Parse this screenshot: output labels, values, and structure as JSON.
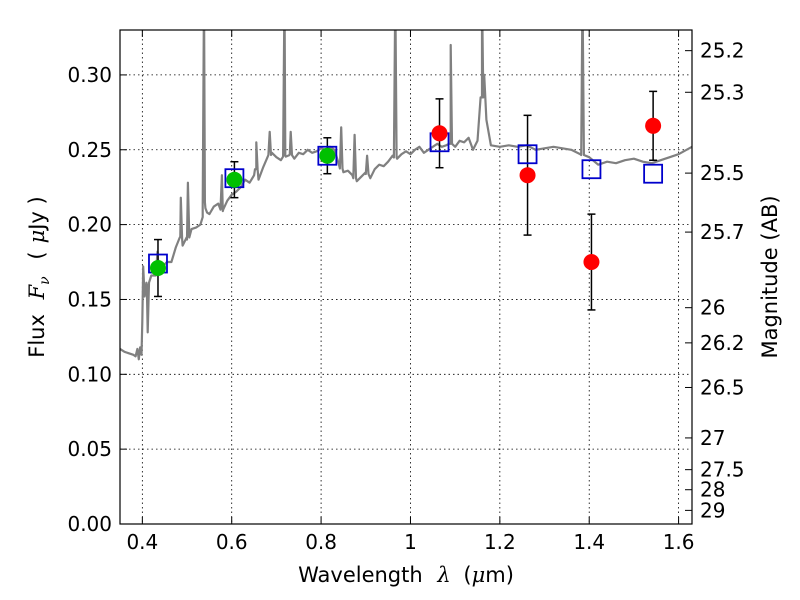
{
  "chart_data": {
    "type": "scatter",
    "xlabel_text": "Wavelength",
    "xlabel_symbol": "λ",
    "xlabel_unit_open": "(",
    "xlabel_unit_mu": "μ",
    "xlabel_unit_rest": "m)",
    "ylabel_text": "Flux",
    "ylabel_symbol": "F",
    "ylabel_subscript": "ν",
    "ylabel_unit_open": "(",
    "ylabel_unit_mu": "μ",
    "ylabel_unit_rest": "Jy )",
    "y2label": "Magnitude (AB)",
    "xlim": [
      0.35,
      1.63
    ],
    "ylim": [
      0.0,
      0.33
    ],
    "grid": true,
    "x_ticks": [
      0.4,
      0.6,
      0.8,
      1.0,
      1.2,
      1.4,
      1.6
    ],
    "x_tick_labels": [
      "0.4",
      "0.6",
      "0.8",
      "1",
      "1.2",
      "1.4",
      "1.6"
    ],
    "y_ticks": [
      0.0,
      0.05,
      0.1,
      0.15,
      0.2,
      0.25,
      0.3
    ],
    "y_tick_labels": [
      "0.00",
      "0.05",
      "0.10",
      "0.15",
      "0.20",
      "0.25",
      "0.30"
    ],
    "mag_ticks": [
      {
        "label": "25.2",
        "flux": 0.3162
      },
      {
        "label": "25.3",
        "flux": 0.2884
      },
      {
        "label": "25.5",
        "flux": 0.2344
      },
      {
        "label": "25.7",
        "flux": 0.195
      },
      {
        "label": "26",
        "flux": 0.1445
      },
      {
        "label": "26.2",
        "flux": 0.121
      },
      {
        "label": "26.5",
        "flux": 0.0912
      },
      {
        "label": "27",
        "flux": 0.0575
      },
      {
        "label": "27.5",
        "flux": 0.0363
      },
      {
        "label": "28",
        "flux": 0.0229
      },
      {
        "label": "29",
        "flux": 0.0091
      }
    ],
    "series": [
      {
        "name": "model spectrum",
        "kind": "line",
        "color": "#808080",
        "points": [
          [
            0.35,
            0.117
          ],
          [
            0.36,
            0.115
          ],
          [
            0.37,
            0.114
          ],
          [
            0.38,
            0.113
          ],
          [
            0.385,
            0.112
          ],
          [
            0.389,
            0.117
          ],
          [
            0.392,
            0.11
          ],
          [
            0.395,
            0.118
          ],
          [
            0.398,
            0.113
          ],
          [
            0.4,
            0.135
          ],
          [
            0.402,
            0.172
          ],
          [
            0.405,
            0.152
          ],
          [
            0.41,
            0.16
          ],
          [
            0.42,
            0.166
          ],
          [
            0.43,
            0.166
          ],
          [
            0.434,
            0.182
          ],
          [
            0.437,
            0.167
          ],
          [
            0.445,
            0.172
          ],
          [
            0.455,
            0.175
          ],
          [
            0.465,
            0.175
          ],
          [
            0.475,
            0.185
          ],
          [
            0.485,
            0.192
          ],
          [
            0.49,
            0.186
          ],
          [
            0.5,
            0.19
          ],
          [
            0.51,
            0.197
          ],
          [
            0.52,
            0.198
          ],
          [
            0.53,
            0.2
          ],
          [
            0.535,
            0.205
          ],
          [
            0.54,
            0.215
          ],
          [
            0.545,
            0.208
          ],
          [
            0.55,
            0.207
          ],
          [
            0.56,
            0.212
          ],
          [
            0.57,
            0.214
          ],
          [
            0.58,
            0.209
          ],
          [
            0.59,
            0.216
          ],
          [
            0.6,
            0.22
          ],
          [
            0.61,
            0.222
          ],
          [
            0.62,
            0.225
          ],
          [
            0.63,
            0.23
          ],
          [
            0.64,
            0.228
          ],
          [
            0.65,
            0.233
          ],
          [
            0.655,
            0.237
          ],
          [
            0.66,
            0.23
          ],
          [
            0.67,
            0.238
          ],
          [
            0.68,
            0.245
          ],
          [
            0.69,
            0.248
          ],
          [
            0.7,
            0.245
          ],
          [
            0.71,
            0.243
          ],
          [
            0.72,
            0.246
          ],
          [
            0.73,
            0.247
          ],
          [
            0.74,
            0.244
          ],
          [
            0.75,
            0.248
          ],
          [
            0.76,
            0.247
          ],
          [
            0.77,
            0.25
          ],
          [
            0.78,
            0.248
          ],
          [
            0.79,
            0.249
          ],
          [
            0.8,
            0.251
          ],
          [
            0.81,
            0.25
          ],
          [
            0.82,
            0.252
          ],
          [
            0.83,
            0.25
          ],
          [
            0.84,
            0.24
          ],
          [
            0.85,
            0.235
          ],
          [
            0.86,
            0.236
          ],
          [
            0.87,
            0.233
          ],
          [
            0.88,
            0.229
          ],
          [
            0.89,
            0.232
          ],
          [
            0.9,
            0.235
          ],
          [
            0.91,
            0.231
          ],
          [
            0.92,
            0.237
          ],
          [
            0.93,
            0.24
          ],
          [
            0.94,
            0.239
          ],
          [
            0.95,
            0.242
          ],
          [
            0.96,
            0.246
          ],
          [
            0.97,
            0.244
          ],
          [
            0.98,
            0.247
          ],
          [
            0.99,
            0.249
          ],
          [
            1.0,
            0.247
          ],
          [
            1.01,
            0.25
          ],
          [
            1.02,
            0.252
          ],
          [
            1.03,
            0.248
          ],
          [
            1.04,
            0.25
          ],
          [
            1.05,
            0.252
          ],
          [
            1.06,
            0.254
          ],
          [
            1.07,
            0.252
          ],
          [
            1.08,
            0.253
          ],
          [
            1.09,
            0.254
          ],
          [
            1.1,
            0.252
          ],
          [
            1.11,
            0.256
          ],
          [
            1.12,
            0.255
          ],
          [
            1.13,
            0.258
          ],
          [
            1.14,
            0.25
          ],
          [
            1.15,
            0.256
          ],
          [
            1.16,
            0.285
          ],
          [
            1.165,
            0.3
          ],
          [
            1.17,
            0.27
          ],
          [
            1.18,
            0.253
          ],
          [
            1.2,
            0.252
          ],
          [
            1.22,
            0.253
          ],
          [
            1.24,
            0.252
          ],
          [
            1.26,
            0.253
          ],
          [
            1.28,
            0.25
          ],
          [
            1.3,
            0.251
          ],
          [
            1.32,
            0.252
          ],
          [
            1.34,
            0.251
          ],
          [
            1.36,
            0.25
          ],
          [
            1.38,
            0.247
          ],
          [
            1.4,
            0.245
          ],
          [
            1.42,
            0.24
          ],
          [
            1.44,
            0.242
          ],
          [
            1.46,
            0.241
          ],
          [
            1.48,
            0.243
          ],
          [
            1.5,
            0.244
          ],
          [
            1.52,
            0.242
          ],
          [
            1.54,
            0.241
          ],
          [
            1.56,
            0.243
          ],
          [
            1.58,
            0.245
          ],
          [
            1.6,
            0.247
          ],
          [
            1.63,
            0.252
          ]
        ],
        "spikes": [
          {
            "x": 0.412,
            "y": 0.128
          },
          {
            "x": 0.486,
            "y": 0.218
          },
          {
            "x": 0.502,
            "y": 0.228
          },
          {
            "x": 0.538,
            "y": 0.355
          },
          {
            "x": 0.578,
            "y": 0.233
          },
          {
            "x": 0.655,
            "y": 0.255
          },
          {
            "x": 0.685,
            "y": 0.262
          },
          {
            "x": 0.718,
            "y": 0.355
          },
          {
            "x": 0.732,
            "y": 0.262
          },
          {
            "x": 0.845,
            "y": 0.265
          },
          {
            "x": 0.875,
            "y": 0.26
          },
          {
            "x": 0.903,
            "y": 0.246
          },
          {
            "x": 0.966,
            "y": 0.355
          },
          {
            "x": 1.09,
            "y": 0.32
          },
          {
            "x": 1.16,
            "y": 0.355
          },
          {
            "x": 1.385,
            "y": 0.355
          }
        ]
      },
      {
        "name": "observed (green)",
        "kind": "marker",
        "color": "#00c000",
        "points": [
          {
            "x": 0.435,
            "y": 0.171,
            "err": 0.019
          },
          {
            "x": 0.606,
            "y": 0.23,
            "err": 0.012
          },
          {
            "x": 0.814,
            "y": 0.246,
            "err": 0.012
          }
        ]
      },
      {
        "name": "observed (red)",
        "kind": "marker",
        "color": "#ff0000",
        "points": [
          {
            "x": 1.065,
            "y": 0.261,
            "err": 0.023
          },
          {
            "x": 1.262,
            "y": 0.233,
            "err": 0.04
          },
          {
            "x": 1.405,
            "y": 0.175,
            "err": 0.032
          },
          {
            "x": 1.543,
            "y": 0.266,
            "err": 0.023
          }
        ]
      },
      {
        "name": "model photometry",
        "kind": "open-square",
        "color": "#0000cc",
        "points": [
          {
            "x": 0.435,
            "y": 0.174
          },
          {
            "x": 0.606,
            "y": 0.231
          },
          {
            "x": 0.814,
            "y": 0.246
          },
          {
            "x": 1.065,
            "y": 0.255
          },
          {
            "x": 1.262,
            "y": 0.247
          },
          {
            "x": 1.405,
            "y": 0.237
          },
          {
            "x": 1.543,
            "y": 0.234
          }
        ]
      }
    ]
  }
}
